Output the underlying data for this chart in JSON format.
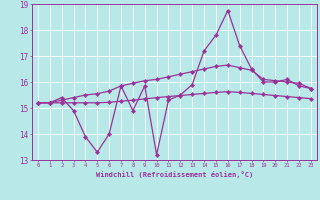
{
  "xlabel": "Windchill (Refroidissement éolien,°C)",
  "bg_color": "#b8e8e8",
  "grid_color": "#ffffff",
  "line_color": "#993399",
  "xlim": [
    -0.5,
    23.5
  ],
  "ylim": [
    13,
    19
  ],
  "yticks": [
    13,
    14,
    15,
    16,
    17,
    18,
    19
  ],
  "xticks": [
    0,
    1,
    2,
    3,
    4,
    5,
    6,
    7,
    8,
    9,
    10,
    11,
    12,
    13,
    14,
    15,
    16,
    17,
    18,
    19,
    20,
    21,
    22,
    23
  ],
  "main_y": [
    15.2,
    15.2,
    15.4,
    14.9,
    13.9,
    13.3,
    14.0,
    15.85,
    14.9,
    15.85,
    13.2,
    15.3,
    15.5,
    15.9,
    17.2,
    17.8,
    18.75,
    17.4,
    16.5,
    16.0,
    16.0,
    16.1,
    15.85,
    15.75
  ],
  "upper_y": [
    15.2,
    15.2,
    15.3,
    15.4,
    15.5,
    15.55,
    15.65,
    15.85,
    15.95,
    16.05,
    16.1,
    16.2,
    16.3,
    16.4,
    16.5,
    16.6,
    16.65,
    16.55,
    16.45,
    16.1,
    16.05,
    16.0,
    15.95,
    15.75
  ],
  "lower_y": [
    15.2,
    15.2,
    15.2,
    15.2,
    15.2,
    15.2,
    15.22,
    15.26,
    15.3,
    15.35,
    15.4,
    15.44,
    15.48,
    15.52,
    15.56,
    15.6,
    15.63,
    15.6,
    15.56,
    15.52,
    15.48,
    15.44,
    15.4,
    15.36
  ]
}
